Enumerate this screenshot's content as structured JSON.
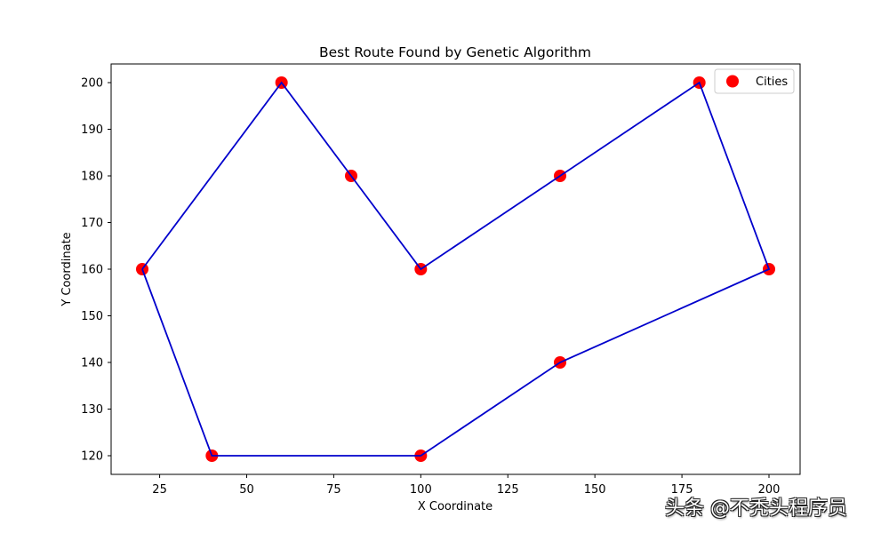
{
  "chart_data": {
    "type": "line",
    "title": "Best Route Found by Genetic Algorithm",
    "xlabel": "X Coordinate",
    "ylabel": "Y Coordinate",
    "xlim": [
      12,
      210
    ],
    "ylim": [
      116,
      204
    ],
    "xticks": [
      25,
      50,
      75,
      100,
      125,
      150,
      175,
      200
    ],
    "yticks": [
      120,
      130,
      140,
      150,
      160,
      170,
      180,
      190,
      200
    ],
    "grid": false,
    "legend": {
      "position": "upper right",
      "entries": [
        "Cities"
      ]
    },
    "series": [
      {
        "name": "Cities",
        "type": "scatter",
        "color": "#ff0000",
        "points": [
          {
            "x": 20,
            "y": 160
          },
          {
            "x": 60,
            "y": 200
          },
          {
            "x": 80,
            "y": 180
          },
          {
            "x": 100,
            "y": 160
          },
          {
            "x": 140,
            "y": 180
          },
          {
            "x": 180,
            "y": 200
          },
          {
            "x": 200,
            "y": 160
          },
          {
            "x": 140,
            "y": 140
          },
          {
            "x": 100,
            "y": 120
          },
          {
            "x": 40,
            "y": 120
          }
        ]
      },
      {
        "name": "Route",
        "type": "line",
        "color": "#0000cc",
        "closed": true,
        "points": [
          {
            "x": 20,
            "y": 160
          },
          {
            "x": 60,
            "y": 200
          },
          {
            "x": 80,
            "y": 180
          },
          {
            "x": 100,
            "y": 160
          },
          {
            "x": 140,
            "y": 180
          },
          {
            "x": 180,
            "y": 200
          },
          {
            "x": 200,
            "y": 160
          },
          {
            "x": 140,
            "y": 140
          },
          {
            "x": 100,
            "y": 120
          },
          {
            "x": 40,
            "y": 120
          },
          {
            "x": 20,
            "y": 160
          }
        ]
      }
    ]
  },
  "watermark": "头条 @不秃头程序员"
}
